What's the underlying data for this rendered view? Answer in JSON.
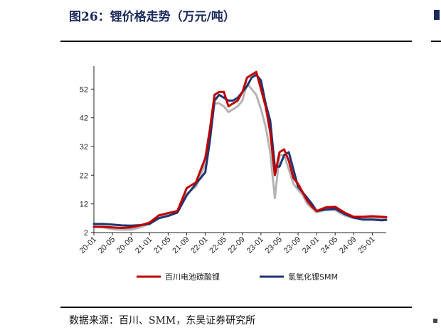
{
  "figure": {
    "title": "图26：锂价格走势（万元/吨）",
    "source": "数据来源：百川、SMM，东吴证券研究所"
  },
  "chart_data": {
    "type": "line",
    "title": "图26：锂价格走势（万元/吨）",
    "xlabel": "",
    "ylabel": "",
    "ylim": [
      2,
      60
    ],
    "yticks": [
      2,
      12,
      22,
      32,
      42,
      52
    ],
    "xticks": [
      "20-01",
      "20-05",
      "20-09",
      "21-01",
      "21-05",
      "21-09",
      "22-01",
      "22-05",
      "22-09",
      "23-01",
      "23-05",
      "23-09",
      "24-01",
      "24-05",
      "24-09",
      "25-01"
    ],
    "grid": false,
    "legend_position": "bottom",
    "x": [
      "20-01",
      "20-03",
      "20-05",
      "20-07",
      "20-09",
      "20-11",
      "21-01",
      "21-03",
      "21-05",
      "21-07",
      "21-09",
      "21-11",
      "22-01",
      "22-02",
      "22-03",
      "22-04",
      "22-05",
      "22-06",
      "22-07",
      "22-08",
      "22-09",
      "22-10",
      "22-11",
      "22-12",
      "23-01",
      "23-02",
      "23-03",
      "23-04",
      "23-05",
      "23-06",
      "23-07",
      "23-08",
      "23-09",
      "23-10",
      "23-11",
      "23-12",
      "24-01",
      "24-03",
      "24-05",
      "24-07",
      "24-09",
      "24-11",
      "25-01",
      "25-03",
      "25-04"
    ],
    "series": [
      {
        "name": "百川电池碳酸锂",
        "color": "#c00000",
        "values": [
          4.0,
          4.0,
          3.8,
          3.6,
          3.8,
          4.5,
          5.5,
          8.0,
          8.8,
          9.5,
          17.5,
          19.5,
          28,
          38,
          50,
          51,
          51,
          46,
          47,
          48,
          51,
          56,
          57,
          58,
          52,
          46,
          37,
          22,
          30,
          31,
          27,
          21,
          19,
          16,
          13,
          11,
          9.5,
          10.8,
          11.0,
          9.0,
          7.5,
          7.5,
          7.7,
          7.5,
          7.4
        ]
      },
      {
        "name": "氢氧化锂SMM",
        "color": "#1f3472",
        "values": [
          5.0,
          5.0,
          4.8,
          4.5,
          4.4,
          4.6,
          5.0,
          7.0,
          7.8,
          9.0,
          15.0,
          19.0,
          23,
          34,
          48,
          50,
          49,
          48,
          48,
          49,
          51,
          53,
          56,
          57,
          55,
          47,
          41,
          25,
          25,
          29,
          30,
          24,
          18,
          16,
          14,
          12,
          9.5,
          10.0,
          10.3,
          8.5,
          7.2,
          6.5,
          6.5,
          6.3,
          6.4
        ]
      },
      {
        "name": "",
        "color": "#b4b4b4",
        "values": [
          4.2,
          3.8,
          3.2,
          3.0,
          3.0,
          3.8,
          5.2,
          7.5,
          8.3,
          9.0,
          15.5,
          18.0,
          26,
          36,
          47,
          47,
          46,
          44,
          45,
          46,
          48,
          54,
          52,
          50,
          45,
          39,
          30,
          14,
          29,
          29,
          24,
          19,
          17,
          15,
          12,
          10.5,
          9.0,
          10.0,
          9.8,
          8.0,
          7.0,
          6.9,
          7.0,
          7.0,
          6.8
        ]
      }
    ]
  },
  "legend": [
    {
      "label": "百川电池碳酸锂",
      "color": "#c00000"
    },
    {
      "label": "氢氧化锂SMM",
      "color": "#1f3472"
    }
  ]
}
